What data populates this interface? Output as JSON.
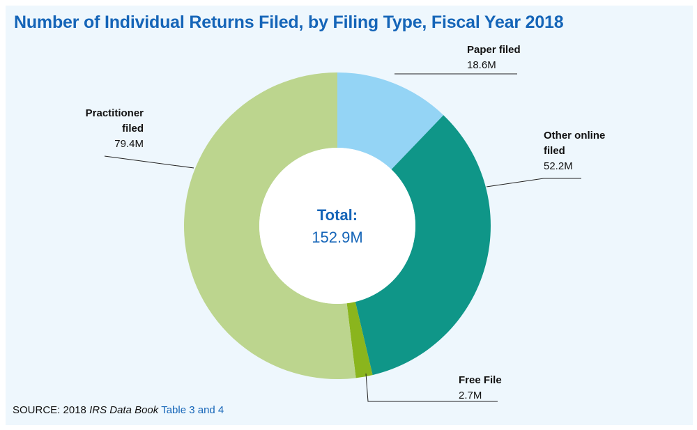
{
  "title": "Number of Individual Returns Filed, by Filing Type, Fiscal Year 2018",
  "source": {
    "prefix": "SOURCE: 2018",
    "book": "IRS Data Book",
    "link": "Table 3 and 4"
  },
  "center": {
    "label": "Total:",
    "value": "152.9M"
  },
  "chart_data": {
    "type": "pie",
    "donut": true,
    "unit": "M",
    "total": 152.9,
    "slices": [
      {
        "name_lines": [
          "Paper filed"
        ],
        "value": 18.6,
        "value_label": "18.6M",
        "color": "#94d4f5"
      },
      {
        "name_lines": [
          "Other online",
          "filed"
        ],
        "value": 52.2,
        "value_label": "52.2M",
        "color": "#0f9688"
      },
      {
        "name_lines": [
          "Free File"
        ],
        "value": 2.7,
        "value_label": "2.7M",
        "color": "#8ab51d"
      },
      {
        "name_lines": [
          "Practitioner",
          "filed"
        ],
        "value": 79.4,
        "value_label": "79.4M",
        "color": "#bcd58e"
      }
    ]
  }
}
